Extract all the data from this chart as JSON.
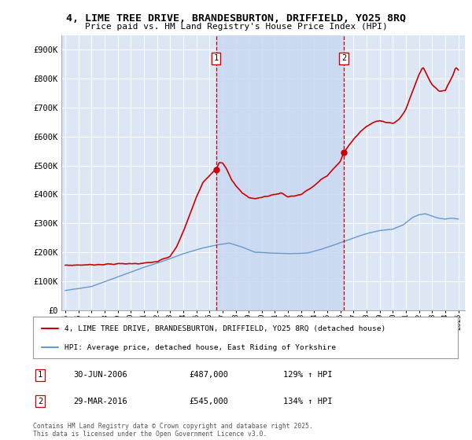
{
  "title": "4, LIME TREE DRIVE, BRANDESBURTON, DRIFFIELD, YO25 8RQ",
  "subtitle": "Price paid vs. HM Land Registry's House Price Index (HPI)",
  "ylabel_ticks": [
    "£0",
    "£100K",
    "£200K",
    "£300K",
    "£400K",
    "£500K",
    "£600K",
    "£700K",
    "£800K",
    "£900K"
  ],
  "ytick_vals": [
    0,
    100000,
    200000,
    300000,
    400000,
    500000,
    600000,
    700000,
    800000,
    900000
  ],
  "ylim": [
    0,
    950000
  ],
  "xlim_start": 1994.7,
  "xlim_end": 2025.5,
  "xtick_labels": [
    "1995",
    "1996",
    "1997",
    "1998",
    "1999",
    "2000",
    "2001",
    "2002",
    "2003",
    "2004",
    "2005",
    "2006",
    "2007",
    "2008",
    "2009",
    "2010",
    "2011",
    "2012",
    "2013",
    "2014",
    "2015",
    "2016",
    "2017",
    "2018",
    "2019",
    "2020",
    "2021",
    "2022",
    "2023",
    "2024",
    "2025"
  ],
  "xtick_vals": [
    1995,
    1996,
    1997,
    1998,
    1999,
    2000,
    2001,
    2002,
    2003,
    2004,
    2005,
    2006,
    2007,
    2008,
    2009,
    2010,
    2011,
    2012,
    2013,
    2014,
    2015,
    2016,
    2017,
    2018,
    2019,
    2020,
    2021,
    2022,
    2023,
    2024,
    2025
  ],
  "plot_bg": "#dce6f5",
  "shade_color": "#c8d8f0",
  "red_color": "#cc0000",
  "blue_color": "#6699cc",
  "vline_color": "#cc0000",
  "sale1_x": 2006.5,
  "sale2_x": 2016.25,
  "sale1_label": "1",
  "sale2_label": "2",
  "sale1_date": "30-JUN-2006",
  "sale1_price": "£487,000",
  "sale1_hpi": "129% ↑ HPI",
  "sale2_date": "29-MAR-2016",
  "sale2_price": "£545,000",
  "sale2_hpi": "134% ↑ HPI",
  "legend_label1": "4, LIME TREE DRIVE, BRANDESBURTON, DRIFFIELD, YO25 8RQ (detached house)",
  "legend_label2": "HPI: Average price, detached house, East Riding of Yorkshire",
  "footer": "Contains HM Land Registry data © Crown copyright and database right 2025.\nThis data is licensed under the Open Government Licence v3.0."
}
